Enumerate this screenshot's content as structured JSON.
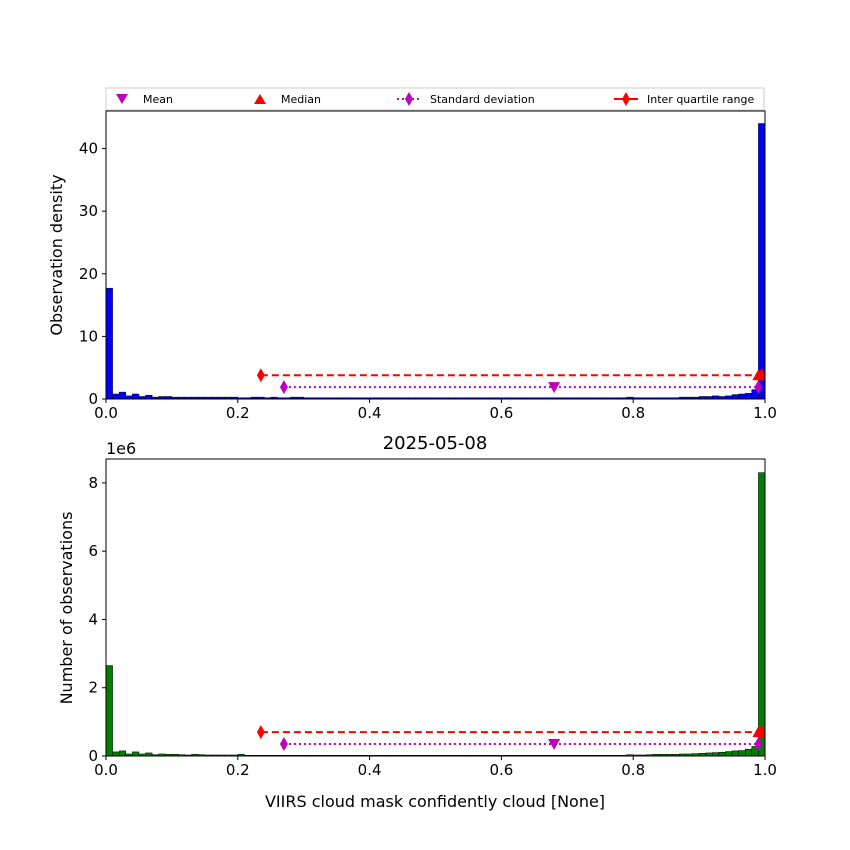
{
  "legend": {
    "items": [
      {
        "label": "Mean",
        "marker": "triangle-down",
        "color": "#bf00bf"
      },
      {
        "label": "Median",
        "marker": "triangle-up",
        "color": "#ff0000"
      },
      {
        "label": "Standard deviation",
        "marker": "diamond-dotted",
        "color": "#bf00bf"
      },
      {
        "label": "Inter quartile range",
        "marker": "diamond-dashed",
        "color": "#ff0000"
      }
    ]
  },
  "colors": {
    "top_bars": "#0000ff",
    "bottom_bars": "#007f00",
    "median": "#ff0000",
    "mean": "#bf00bf"
  },
  "chart_data": [
    {
      "type": "bar",
      "ylabel": "Observation density",
      "xlim": [
        0,
        1
      ],
      "ylim": [
        0,
        46
      ],
      "xticks": [
        "0.0",
        "0.2",
        "0.4",
        "0.6",
        "0.8",
        "1.0"
      ],
      "yticks": [
        "0",
        "10",
        "20",
        "30",
        "40"
      ],
      "bin_width": 0.01,
      "values": [
        17.7,
        0.8,
        1.1,
        0.5,
        0.8,
        0.4,
        0.6,
        0.3,
        0.4,
        0.4,
        0.3,
        0.3,
        0.3,
        0.3,
        0.3,
        0.3,
        0.3,
        0.3,
        0.3,
        0.3,
        0.2,
        0.2,
        0.3,
        0.3,
        0.2,
        0.3,
        0.2,
        0.2,
        0.3,
        0.3,
        0.2,
        0.2,
        0.2,
        0.2,
        0.2,
        0.2,
        0.2,
        0.2,
        0.2,
        0.2,
        0.2,
        0.2,
        0.2,
        0.2,
        0.2,
        0.2,
        0.2,
        0.2,
        0.2,
        0.2,
        0.2,
        0.2,
        0.2,
        0.2,
        0.2,
        0.2,
        0.2,
        0.2,
        0.2,
        0.2,
        0.2,
        0.2,
        0.2,
        0.2,
        0.2,
        0.2,
        0.2,
        0.2,
        0.2,
        0.2,
        0.2,
        0.2,
        0.2,
        0.2,
        0.2,
        0.2,
        0.2,
        0.2,
        0.2,
        0.3,
        0.2,
        0.2,
        0.2,
        0.2,
        0.2,
        0.2,
        0.2,
        0.3,
        0.3,
        0.3,
        0.4,
        0.4,
        0.5,
        0.4,
        0.5,
        0.7,
        0.8,
        0.9,
        1.5,
        44.0
      ],
      "stats": {
        "mean": 0.68,
        "median": 0.99,
        "std_low": 0.27,
        "std_high": 0.99,
        "iqr_low": 0.235,
        "iqr_high": 0.995
      },
      "stat_levels": {
        "iqr": 3.8,
        "std": 1.9,
        "mean": 1.9,
        "median": 3.8
      }
    },
    {
      "type": "bar",
      "title": "2025-05-08",
      "xlabel": "VIIRS cloud mask confidently cloud [None]",
      "ylabel": "Number of observations",
      "y_offset_label": "1e6",
      "xlim": [
        0,
        1
      ],
      "ylim": [
        0,
        8.7
      ],
      "xticks": [
        "0.0",
        "0.2",
        "0.4",
        "0.6",
        "0.8",
        "1.0"
      ],
      "yticks": [
        "0",
        "2",
        "4",
        "6",
        "8"
      ],
      "bin_width": 0.01,
      "values": [
        2.65,
        0.12,
        0.15,
        0.06,
        0.12,
        0.06,
        0.09,
        0.04,
        0.06,
        0.05,
        0.05,
        0.04,
        0.03,
        0.05,
        0.04,
        0.03,
        0.03,
        0.03,
        0.03,
        0.03,
        0.05,
        0.02,
        0.02,
        0.02,
        0.02,
        0.02,
        0.02,
        0.02,
        0.02,
        0.02,
        0.02,
        0.02,
        0.02,
        0.02,
        0.02,
        0.02,
        0.02,
        0.02,
        0.02,
        0.02,
        0.02,
        0.02,
        0.02,
        0.02,
        0.02,
        0.02,
        0.02,
        0.02,
        0.02,
        0.02,
        0.02,
        0.02,
        0.02,
        0.02,
        0.02,
        0.02,
        0.02,
        0.02,
        0.02,
        0.02,
        0.02,
        0.02,
        0.02,
        0.02,
        0.02,
        0.02,
        0.02,
        0.02,
        0.02,
        0.02,
        0.02,
        0.02,
        0.02,
        0.02,
        0.02,
        0.02,
        0.02,
        0.02,
        0.02,
        0.04,
        0.03,
        0.03,
        0.04,
        0.05,
        0.05,
        0.05,
        0.05,
        0.06,
        0.06,
        0.07,
        0.08,
        0.09,
        0.1,
        0.11,
        0.13,
        0.15,
        0.16,
        0.2,
        0.28,
        8.3
      ],
      "stats": {
        "mean": 0.68,
        "median": 0.99,
        "std_low": 0.27,
        "std_high": 0.99,
        "iqr_low": 0.235,
        "iqr_high": 0.995
      },
      "stat_levels": {
        "iqr": 0.7,
        "std": 0.35,
        "mean": 0.35,
        "median": 0.7
      }
    }
  ]
}
